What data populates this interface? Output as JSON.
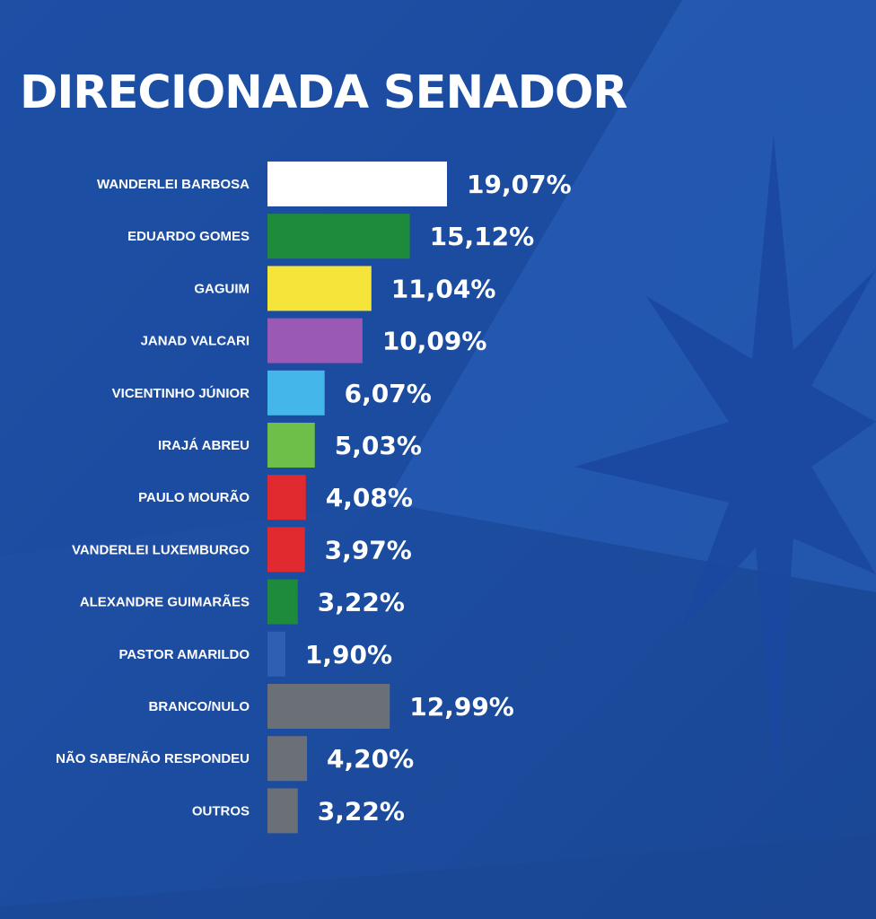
{
  "chart_data": {
    "type": "bar",
    "orientation": "horizontal",
    "title": "DIRECIONADA SENADOR",
    "categories": [
      "WANDERLEI BARBOSA",
      "EDUARDO GOMES",
      "GAGUIM",
      "JANAD VALCARI",
      "VICENTINHO JÚNIOR",
      "IRAJÁ ABREU",
      "PAULO MOURÃO",
      "VANDERLEI LUXEMBURGO",
      "ALEXANDRE GUIMARÃES",
      "PASTOR AMARILDO",
      "BRANCO/NULO",
      "NÃO SABE/NÃO RESPONDEU",
      "OUTROS"
    ],
    "values": [
      19.07,
      15.12,
      11.04,
      10.09,
      6.07,
      5.03,
      4.08,
      3.97,
      3.22,
      1.9,
      12.99,
      4.2,
      3.22
    ],
    "value_labels": [
      "19,07%",
      "15,12%",
      "11,04%",
      "10,09%",
      "6,07%",
      "5,03%",
      "4,08%",
      "3,97%",
      "3,22%",
      "1,90%",
      "12,99%",
      "4,20%",
      "3,22%"
    ],
    "colors": [
      "#ffffff",
      "#1e8a3c",
      "#f5e43a",
      "#9b59b6",
      "#45b6ea",
      "#6cc04a",
      "#e12a2f",
      "#e12a2f",
      "#1e8a3c",
      "#2f5fb3",
      "#6b6f77",
      "#6b6f77",
      "#6b6f77"
    ],
    "xlim": [
      0,
      19.07
    ],
    "grid": false,
    "legend": "none"
  },
  "theme": {
    "background": "#1d4ea3",
    "text_color": "#ffffff"
  }
}
